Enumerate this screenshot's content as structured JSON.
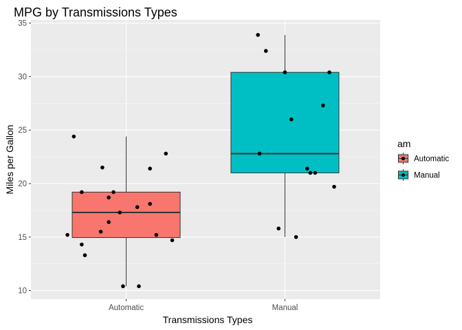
{
  "chart_data": {
    "type": "box",
    "title": "MPG by Transmissions Types",
    "xlabel": "Transmissions Types",
    "ylabel": "Miles per Gallon",
    "ylim": [
      9.2,
      35.3
    ],
    "yticks": [
      10,
      15,
      20,
      25,
      30,
      35
    ],
    "grid": true,
    "categories": [
      "Automatic",
      "Manual"
    ],
    "legend": {
      "title": "am",
      "position": "right",
      "entries": [
        {
          "label": "Automatic",
          "color": "#F8766D"
        },
        {
          "label": "Manual",
          "color": "#00BFC4"
        }
      ]
    },
    "boxes": [
      {
        "category": "Automatic",
        "color": "#F8766D",
        "min": 10.4,
        "q1": 14.95,
        "median": 17.3,
        "q3": 19.2,
        "max": 24.4
      },
      {
        "category": "Manual",
        "color": "#00BFC4",
        "min": 15.0,
        "q1": 21.0,
        "median": 22.8,
        "q3": 30.4,
        "max": 33.9
      }
    ],
    "points": [
      {
        "category": "Automatic",
        "jitter": -0.37,
        "y": 15.2
      },
      {
        "category": "Automatic",
        "jitter": -0.33,
        "y": 24.4
      },
      {
        "category": "Automatic",
        "jitter": -0.28,
        "y": 19.2
      },
      {
        "category": "Automatic",
        "jitter": -0.28,
        "y": 14.3
      },
      {
        "category": "Automatic",
        "jitter": -0.26,
        "y": 13.3
      },
      {
        "category": "Automatic",
        "jitter": -0.16,
        "y": 15.5
      },
      {
        "category": "Automatic",
        "jitter": -0.15,
        "y": 21.5
      },
      {
        "category": "Automatic",
        "jitter": -0.11,
        "y": 18.7
      },
      {
        "category": "Automatic",
        "jitter": -0.11,
        "y": 16.4
      },
      {
        "category": "Automatic",
        "jitter": -0.08,
        "y": 19.2
      },
      {
        "category": "Automatic",
        "jitter": -0.04,
        "y": 17.3
      },
      {
        "category": "Automatic",
        "jitter": -0.02,
        "y": 10.4
      },
      {
        "category": "Automatic",
        "jitter": 0.08,
        "y": 10.4
      },
      {
        "category": "Automatic",
        "jitter": 0.07,
        "y": 17.8
      },
      {
        "category": "Automatic",
        "jitter": 0.15,
        "y": 18.1
      },
      {
        "category": "Automatic",
        "jitter": 0.15,
        "y": 21.4
      },
      {
        "category": "Automatic",
        "jitter": 0.19,
        "y": 15.2
      },
      {
        "category": "Automatic",
        "jitter": 0.25,
        "y": 22.8
      },
      {
        "category": "Automatic",
        "jitter": 0.29,
        "y": 14.7
      },
      {
        "category": "Manual",
        "jitter": -0.17,
        "y": 33.9
      },
      {
        "category": "Manual",
        "jitter": -0.12,
        "y": 32.4
      },
      {
        "category": "Manual",
        "jitter": -0.16,
        "y": 22.8
      },
      {
        "category": "Manual",
        "jitter": -0.04,
        "y": 15.8
      },
      {
        "category": "Manual",
        "jitter": 0.0,
        "y": 30.4
      },
      {
        "category": "Manual",
        "jitter": 0.04,
        "y": 26.0
      },
      {
        "category": "Manual",
        "jitter": 0.07,
        "y": 15.0
      },
      {
        "category": "Manual",
        "jitter": 0.14,
        "y": 21.4
      },
      {
        "category": "Manual",
        "jitter": 0.16,
        "y": 21.0
      },
      {
        "category": "Manual",
        "jitter": 0.19,
        "y": 21.0
      },
      {
        "category": "Manual",
        "jitter": 0.24,
        "y": 27.3
      },
      {
        "category": "Manual",
        "jitter": 0.28,
        "y": 30.4
      },
      {
        "category": "Manual",
        "jitter": 0.31,
        "y": 19.7
      }
    ]
  }
}
